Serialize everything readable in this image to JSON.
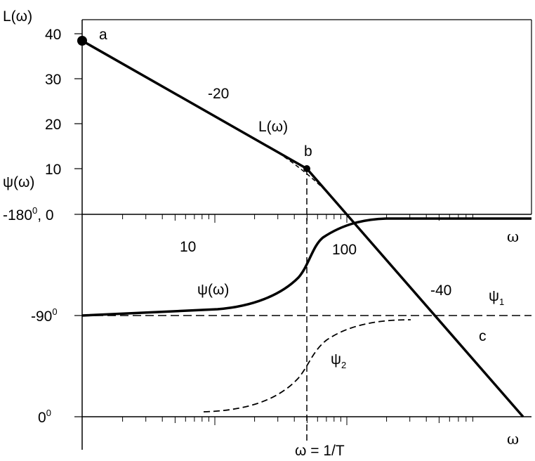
{
  "labels": {
    "y_axis_top": "L(ω)",
    "y_axis_phase": "ψ(ω)",
    "tick_40": "40",
    "tick_30": "30",
    "tick_20": "20",
    "tick_10": "10",
    "tick_zero_prefix": "-180",
    "tick_zero_sup": "0",
    "tick_zero_suffix": ", 0",
    "tick_m90": "-90",
    "tick_m90_sup": "0",
    "tick_0": "0",
    "tick_0_sup": "0",
    "x_10": "10",
    "x_100": "100",
    "omega_mid": "ω",
    "omega_bottom": "ω",
    "omega_eq": "ω = 1/T",
    "point_a": "a",
    "point_b": "b",
    "point_c": "c",
    "slope_20": "-20",
    "slope_40": "-40",
    "curve_L": "L(ω)",
    "curve_psi": "ψ(ω)",
    "psi1": "ψ",
    "psi1_sub": "1",
    "psi2": "ψ",
    "psi2_sub": "2"
  }
}
